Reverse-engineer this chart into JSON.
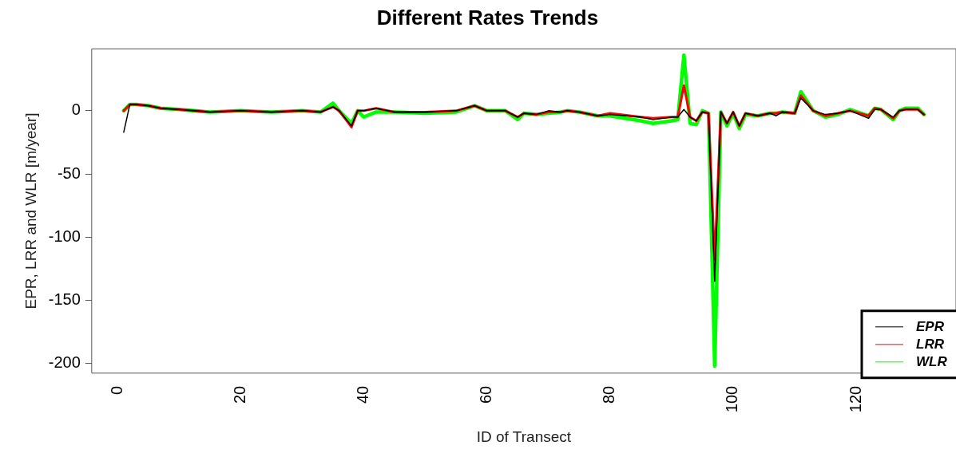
{
  "chart_data": {
    "type": "line",
    "title": "Different Rates Trends",
    "xlabel": "ID of Transect",
    "ylabel": "EPR, LRR and WLR [m/year]",
    "x": [
      1,
      2,
      3,
      5,
      7,
      10,
      15,
      20,
      25,
      30,
      33,
      35,
      36,
      38,
      39,
      40,
      42,
      45,
      50,
      55,
      58,
      60,
      63,
      65,
      66,
      68,
      70,
      72,
      73,
      75,
      78,
      80,
      85,
      87,
      90,
      91,
      92,
      93,
      94,
      95,
      96,
      97,
      98,
      99,
      100,
      101,
      102,
      104,
      106,
      107,
      108,
      110,
      111,
      113,
      115,
      117,
      119,
      122,
      123,
      124,
      126,
      127,
      128,
      130,
      131
    ],
    "series": [
      {
        "name": "EPR",
        "color": "#000000",
        "values": [
          -17,
          5,
          5,
          4,
          2,
          1,
          -1,
          0,
          -1,
          0,
          -1,
          3,
          0,
          -12,
          0,
          0,
          2,
          -1,
          -1,
          0,
          4,
          0,
          0,
          -5,
          -2,
          -3,
          0,
          -1,
          0,
          -1,
          -4,
          -3,
          -5,
          -7,
          -5,
          -5,
          1,
          -5,
          -8,
          -1,
          -2,
          -135,
          -1,
          -10,
          -1,
          -12,
          -2,
          -4,
          -2,
          -4,
          -1,
          -2,
          10,
          0,
          -3,
          -2,
          0,
          -6,
          1,
          1,
          -5,
          0,
          1,
          1,
          -3
        ]
      },
      {
        "name": "LRR",
        "color": "#ff0000",
        "values": [
          0,
          5,
          5,
          4,
          2,
          1,
          -1,
          0,
          -1,
          0,
          -1,
          3,
          0,
          -13,
          0,
          0,
          2,
          -1,
          -1,
          0,
          4,
          0,
          0,
          -5,
          -2,
          -3,
          -1,
          -1,
          0,
          -1,
          -4,
          -2,
          -5,
          -6,
          -5,
          -5,
          20,
          -5,
          -8,
          -1,
          -2,
          -118,
          -1,
          -10,
          -1,
          -12,
          -2,
          -4,
          -2,
          -2,
          -1,
          -2,
          12,
          0,
          -4,
          -2,
          0,
          -4,
          2,
          1,
          -6,
          0,
          1,
          1,
          -3
        ]
      },
      {
        "name": "WLR",
        "color": "#00ff00",
        "values": [
          0,
          5,
          5,
          4,
          2,
          1,
          -1,
          0,
          -1,
          0,
          -1,
          6,
          0,
          -10,
          0,
          -5,
          -1,
          -1,
          -2,
          -1,
          4,
          0,
          0,
          -7,
          -2,
          -3,
          -2,
          -1,
          0,
          -1,
          -4,
          -4,
          -8,
          -10,
          -8,
          -7,
          44,
          -10,
          -11,
          0,
          -2,
          -202,
          -1,
          -12,
          -2,
          -14,
          -3,
          -4,
          -2,
          -2,
          -1,
          -2,
          15,
          0,
          -5,
          -3,
          1,
          -4,
          2,
          1,
          -7,
          0,
          2,
          2,
          -3
        ]
      }
    ],
    "xlim": [
      -4.2,
      136.2
    ],
    "xticks": [
      0,
      20,
      40,
      60,
      80,
      100,
      120
    ],
    "ylim": [
      -207.6,
      49
    ],
    "yticks": [
      0,
      -50,
      -100,
      -150,
      -200
    ],
    "grid": false,
    "legend": "bottom right",
    "marker": "none",
    "line_style": "solid"
  }
}
